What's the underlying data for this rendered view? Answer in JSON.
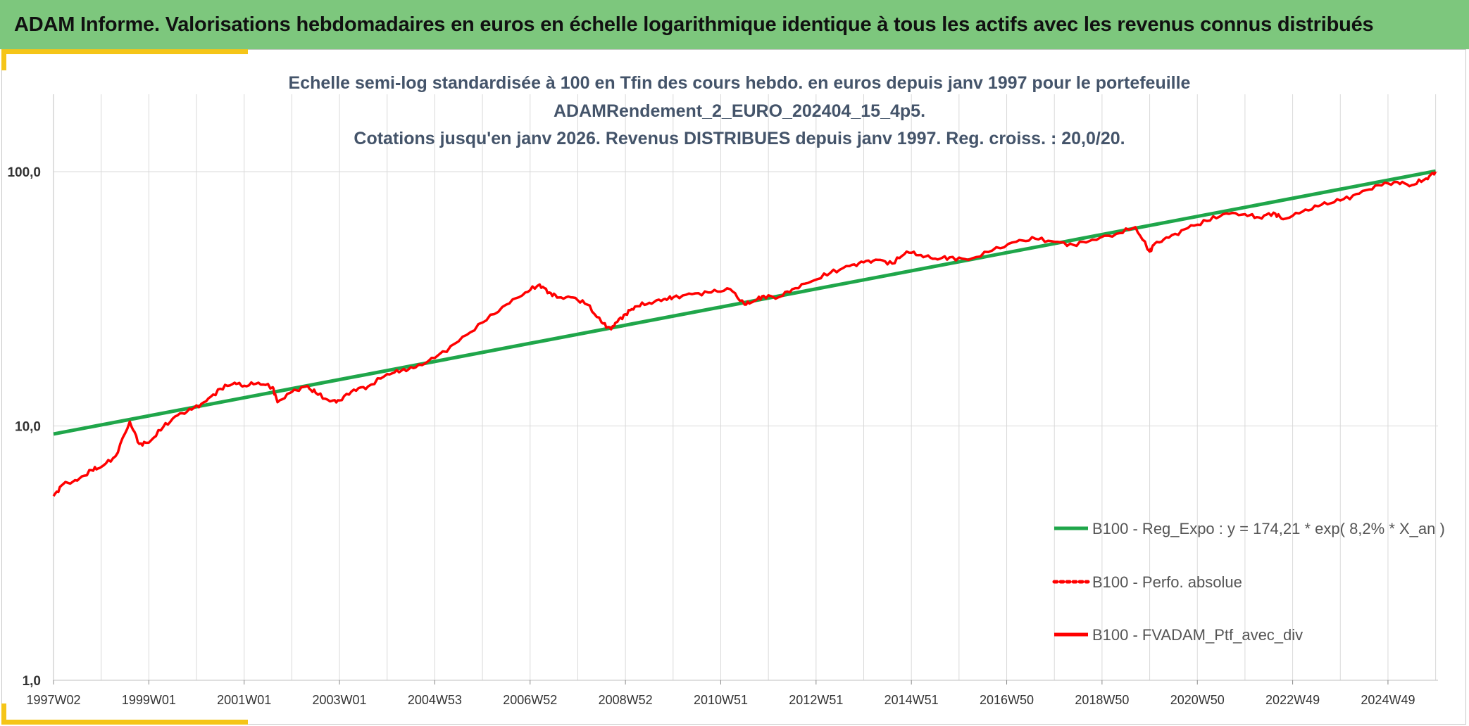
{
  "header": {
    "title": "ADAM Informe. Valorisations hebdomadaires en euros en échelle logarithmique identique à tous les actifs avec les revenus connus distribués"
  },
  "colors": {
    "banner": "#7dc77d",
    "accent": "#f5c518",
    "regression": "#1fa64a",
    "portfolio": "#ff0000"
  },
  "chart_data": {
    "type": "line",
    "title_lines": [
      "Echelle semi-log standardisée à 100 en Tfin des cours hebdo. en euros depuis janv 1997 pour le portefeuille",
      "ADAMRendement_2_EURO_202404_15_4p5.",
      "Cotations jusqu'en janv 2026. Revenus DISTRIBUES depuis janv 1997. Reg. croiss. : 20,0/20."
    ],
    "y_scale": "log",
    "ylim": [
      1,
      100
    ],
    "y_ticks": [
      {
        "value": 1,
        "label": "1,0"
      },
      {
        "value": 10,
        "label": "10,0"
      },
      {
        "value": 100,
        "label": "100,0"
      }
    ],
    "xlim": [
      1997.0,
      2026.05
    ],
    "x_ticks": [
      {
        "value": 1997.0,
        "label": "1997W02"
      },
      {
        "value": 1999.0,
        "label": "1999W01"
      },
      {
        "value": 2001.0,
        "label": "2001W01"
      },
      {
        "value": 2003.0,
        "label": "2003W01"
      },
      {
        "value": 2005.0,
        "label": "2004W53"
      },
      {
        "value": 2007.0,
        "label": "2006W52"
      },
      {
        "value": 2009.0,
        "label": "2008W52"
      },
      {
        "value": 2011.0,
        "label": "2010W51"
      },
      {
        "value": 2013.0,
        "label": "2012W51"
      },
      {
        "value": 2015.0,
        "label": "2014W51"
      },
      {
        "value": 2017.0,
        "label": "2016W50"
      },
      {
        "value": 2019.0,
        "label": "2018W50"
      },
      {
        "value": 2021.0,
        "label": "2020W50"
      },
      {
        "value": 2023.0,
        "label": "2022W49"
      },
      {
        "value": 2025.0,
        "label": "2024W49"
      }
    ],
    "grid": "vertical",
    "legend_position": "bottom-right",
    "series": [
      {
        "name": "B100 - Reg_Expo : y = 174,21 * exp( 8,2% *  X_an )",
        "color": "#1fa64a",
        "style": "solid",
        "x": [
          1997.0,
          2026.0
        ],
        "y": [
          9.3,
          100.5
        ]
      },
      {
        "name": "B100 - Perfo. absolue",
        "color": "#ff0000",
        "style": "dotted",
        "x": [],
        "y": []
      },
      {
        "name": "B100 - FVADAM_Ptf_avec_div",
        "color": "#ff0000",
        "style": "solid",
        "x": [
          1997.0,
          1997.2,
          1997.5,
          1997.8,
          1998.0,
          1998.3,
          1998.6,
          1998.8,
          1999.0,
          1999.3,
          1999.6,
          1999.9,
          2000.2,
          2000.5,
          2000.8,
          2001.0,
          2001.3,
          2001.6,
          2001.7,
          2002.0,
          2002.3,
          2002.5,
          2002.8,
          2003.0,
          2003.3,
          2003.6,
          2004.0,
          2004.3,
          2004.6,
          2005.0,
          2005.5,
          2006.0,
          2006.5,
          2006.9,
          2007.2,
          2007.4,
          2007.6,
          2007.9,
          2008.2,
          2008.5,
          2008.7,
          2008.8,
          2009.0,
          2009.2,
          2009.5,
          2009.8,
          2010.0,
          2010.4,
          2010.8,
          2011.2,
          2011.5,
          2011.7,
          2011.9,
          2012.2,
          2012.5,
          2012.9,
          2013.3,
          2013.7,
          2014.0,
          2014.3,
          2014.6,
          2014.9,
          2015.2,
          2015.5,
          2015.8,
          2016.2,
          2016.7,
          2017.2,
          2017.6,
          2018.0,
          2018.4,
          2018.8,
          2019.3,
          2019.7,
          2020.0,
          2020.1,
          2020.4,
          2020.8,
          2021.2,
          2021.6,
          2022.0,
          2022.3,
          2022.6,
          2022.8,
          2023.2,
          2023.6,
          2024.0,
          2024.4,
          2024.8,
          2025.2,
          2025.5,
          2025.8,
          2026.0
        ],
        "y": [
          5.3,
          5.9,
          6.1,
          6.7,
          6.9,
          7.6,
          10.4,
          8.5,
          8.6,
          9.9,
          11.0,
          11.6,
          12.5,
          14.0,
          14.8,
          14.4,
          14.8,
          14.2,
          12.4,
          13.6,
          14.3,
          13.5,
          12.5,
          12.6,
          13.9,
          14.3,
          16.0,
          16.5,
          17.0,
          18.5,
          21.5,
          25.5,
          30.0,
          33.5,
          36.0,
          33.5,
          32.0,
          32.0,
          30.0,
          25.5,
          24.0,
          25.5,
          27.5,
          29.5,
          30.5,
          31.5,
          32.0,
          33.0,
          33.5,
          34.5,
          30.0,
          31.0,
          32.5,
          32.0,
          34.5,
          37.0,
          40.0,
          42.5,
          44.0,
          45.0,
          43.5,
          48.5,
          47.0,
          45.5,
          46.0,
          45.0,
          49.0,
          53.0,
          54.5,
          53.0,
          51.5,
          54.0,
          57.0,
          60.5,
          48.5,
          52.0,
          55.0,
          60.0,
          64.0,
          68.5,
          68.0,
          66.0,
          69.0,
          65.0,
          69.5,
          74.0,
          77.0,
          82.0,
          88.5,
          91.0,
          88.5,
          94.0,
          100.0
        ]
      }
    ]
  }
}
